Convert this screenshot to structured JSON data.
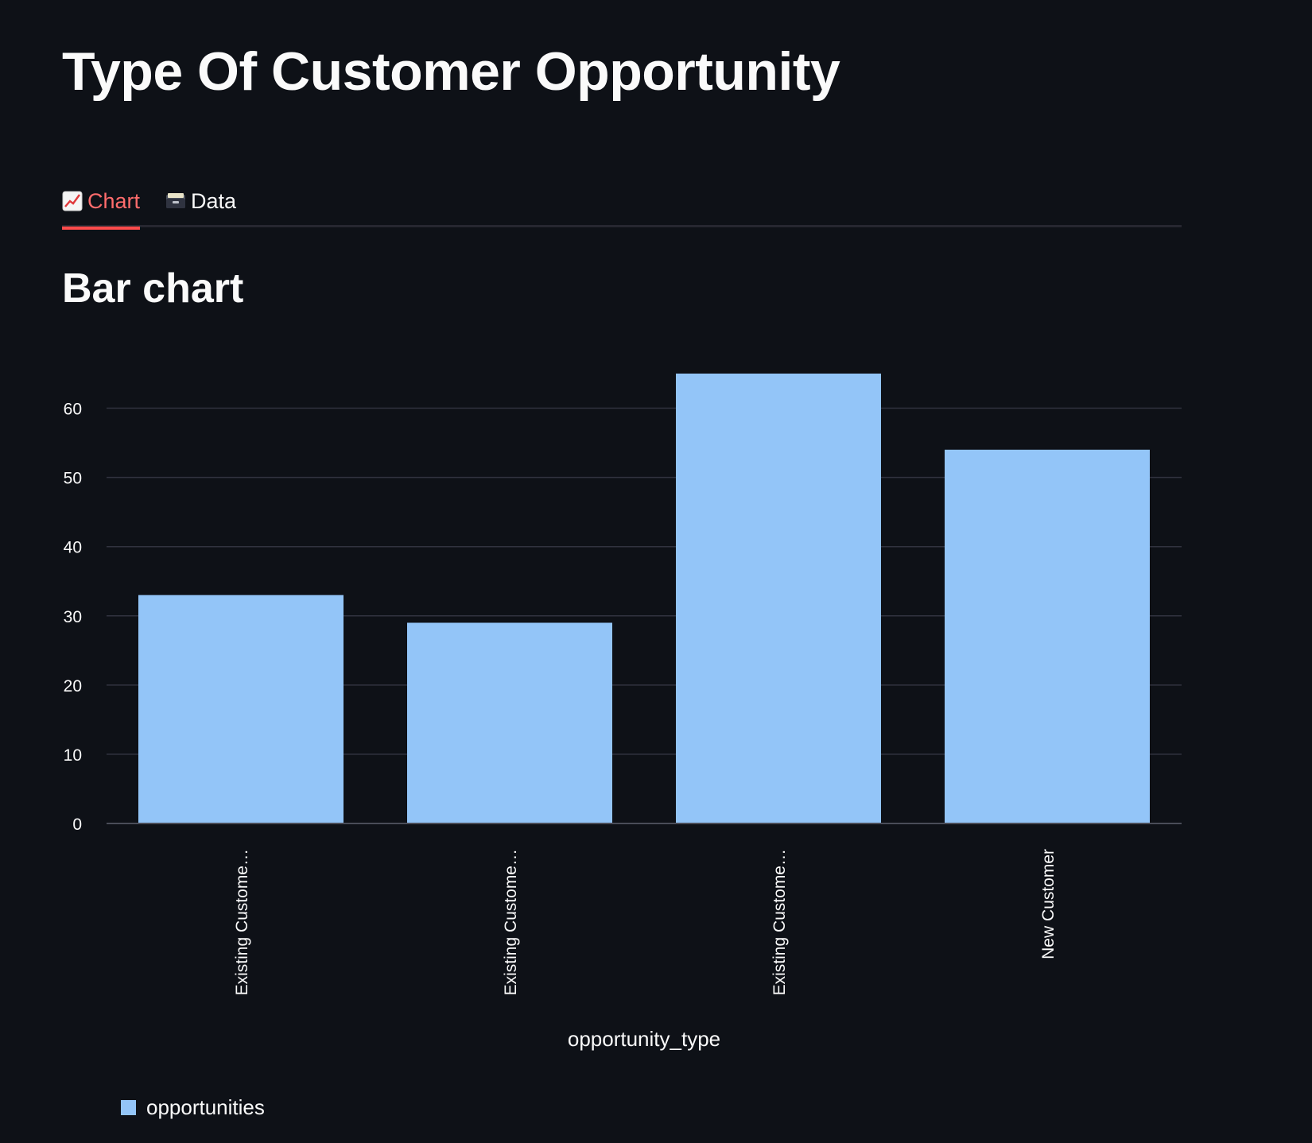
{
  "page": {
    "title": "Type Of Customer Opportunity",
    "section_title": "Bar chart"
  },
  "tabs": [
    {
      "label": "Chart",
      "icon": "chart-increasing-icon",
      "active": true
    },
    {
      "label": "Data",
      "icon": "card-file-box-icon",
      "active": false
    }
  ],
  "colors": {
    "background": "#0e1117",
    "accent": "#ff4b4b",
    "bar": "#93c5f8",
    "grid": "#31333f",
    "text": "#fafafa"
  },
  "chart_data": {
    "type": "bar",
    "categories": [
      "Existing Custome…",
      "Existing Custome…",
      "Existing Custome…",
      "New Customer"
    ],
    "series": [
      {
        "name": "opportunities",
        "values": [
          33,
          29,
          65,
          54
        ]
      }
    ],
    "xlabel": "opportunity_type",
    "ylabel": "",
    "ylim": [
      0,
      65
    ],
    "yticks": [
      0,
      10,
      20,
      30,
      40,
      50,
      60
    ],
    "grid": true,
    "legend": "bottom-left"
  }
}
